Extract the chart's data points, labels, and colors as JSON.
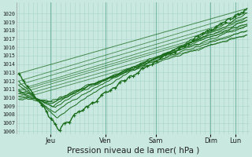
{
  "title": "",
  "xlabel": "Pression niveau de la mer( hPa )",
  "background_color": "#c8e8e0",
  "line_color": "#1a6b1a",
  "grid_color_minor": "#a8d4cc",
  "grid_color_major": "#7ab8a8",
  "ylim": [
    1006,
    1021
  ],
  "yticks": [
    1006,
    1007,
    1008,
    1009,
    1010,
    1011,
    1012,
    1013,
    1014,
    1015,
    1016,
    1017,
    1018,
    1019,
    1020
  ],
  "day_labels": [
    "Jeu",
    "Ven",
    "Sam",
    "Dim",
    "Lun"
  ],
  "day_positions": [
    0.14,
    0.38,
    0.6,
    0.84,
    0.95
  ]
}
